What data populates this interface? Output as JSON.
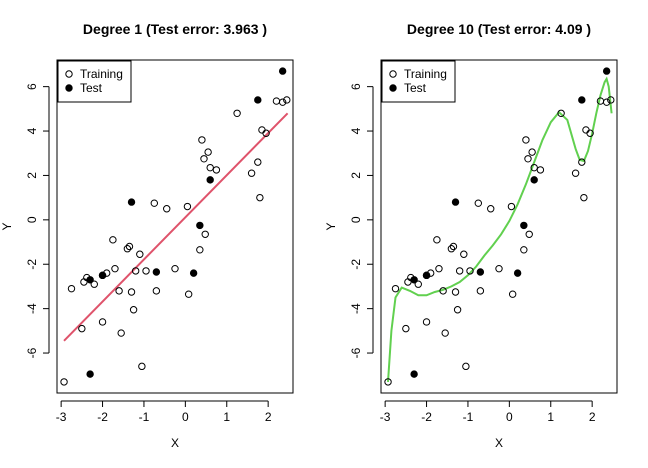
{
  "chart_data": [
    {
      "type": "scatter",
      "title": "Degree 1 (Test error: 3.963 )",
      "xlabel": "X",
      "ylabel": "Y",
      "xlim": [
        -3.1,
        2.6
      ],
      "ylim": [
        -7.8,
        7.2
      ],
      "xticks": [
        -3,
        -2,
        -1,
        0,
        1,
        2
      ],
      "yticks": [
        -6,
        -4,
        -2,
        0,
        2,
        4,
        6
      ],
      "legend": {
        "position": "top-left",
        "entries": [
          "Training",
          "Test"
        ]
      },
      "fit_color": "#DF536B",
      "fit_line": {
        "x": [
          -2.93,
          2.47
        ],
        "y": [
          -5.45,
          4.8
        ]
      },
      "series": [
        {
          "name": "Training",
          "marker": "open-circle",
          "x": [
            -2.93,
            -2.75,
            -2.5,
            -2.45,
            -2.38,
            -2.2,
            -2.0,
            -2.0,
            -1.9,
            -1.75,
            -1.7,
            -1.6,
            -1.55,
            -1.4,
            -1.35,
            -1.3,
            -1.25,
            -1.2,
            -1.1,
            -1.05,
            -0.95,
            -0.75,
            -0.7,
            -0.45,
            -0.25,
            0.05,
            0.08,
            0.35,
            0.4,
            0.45,
            0.48,
            0.55,
            0.6,
            0.75,
            1.25,
            1.6,
            1.75,
            1.8,
            1.85,
            1.95,
            2.2,
            2.35,
            2.45
          ],
          "y": [
            -7.3,
            -3.1,
            -4.9,
            -2.8,
            -2.6,
            -2.9,
            -4.6,
            -2.5,
            -2.4,
            -0.9,
            -2.2,
            -3.2,
            -5.1,
            -1.3,
            -1.2,
            -3.25,
            -4.05,
            -2.3,
            -1.55,
            -6.6,
            -2.3,
            0.75,
            -3.2,
            0.5,
            -2.2,
            0.6,
            -3.35,
            -1.35,
            3.6,
            2.75,
            -0.65,
            3.05,
            2.35,
            2.25,
            4.8,
            2.1,
            2.6,
            1.0,
            4.05,
            3.9,
            5.35,
            5.3,
            5.4
          ]
        },
        {
          "name": "Test",
          "marker": "filled-circle",
          "x": [
            -2.3,
            -2.3,
            -2.0,
            -1.3,
            -0.7,
            0.2,
            0.35,
            0.6,
            1.75,
            2.35
          ],
          "y": [
            -6.95,
            -2.7,
            -2.5,
            0.8,
            -2.35,
            -2.4,
            -0.25,
            1.8,
            5.4,
            6.7
          ]
        }
      ]
    },
    {
      "type": "scatter",
      "title": "Degree 10 (Test error: 4.09 )",
      "xlabel": "X",
      "ylabel": "Y",
      "xlim": [
        -3.1,
        2.6
      ],
      "ylim": [
        -7.8,
        7.2
      ],
      "xticks": [
        -3,
        -2,
        -1,
        0,
        1,
        2
      ],
      "yticks": [
        -6,
        -4,
        -2,
        0,
        2,
        4,
        6
      ],
      "legend": {
        "position": "top-left",
        "entries": [
          "Training",
          "Test"
        ]
      },
      "fit_color": "#61D04F",
      "fit_line": {
        "x": [
          -2.93,
          -2.85,
          -2.75,
          -2.6,
          -2.4,
          -2.2,
          -2.0,
          -1.8,
          -1.6,
          -1.4,
          -1.2,
          -1.0,
          -0.8,
          -0.6,
          -0.4,
          -0.2,
          0.0,
          0.2,
          0.4,
          0.6,
          0.8,
          1.0,
          1.2,
          1.4,
          1.6,
          1.7,
          1.8,
          1.9,
          2.0,
          2.1,
          2.2,
          2.3,
          2.35,
          2.4,
          2.47
        ],
        "y": [
          -7.3,
          -5.0,
          -3.5,
          -3.05,
          -3.2,
          -3.4,
          -3.4,
          -3.25,
          -3.15,
          -3.0,
          -2.8,
          -2.5,
          -2.1,
          -1.6,
          -1.15,
          -0.65,
          -0.05,
          0.7,
          1.6,
          2.6,
          3.6,
          4.4,
          4.85,
          4.5,
          3.2,
          2.7,
          2.65,
          3.1,
          3.9,
          4.8,
          5.6,
          6.2,
          6.35,
          6.0,
          4.8
        ]
      },
      "series": [
        {
          "name": "Training",
          "marker": "open-circle",
          "x": [
            -2.93,
            -2.75,
            -2.5,
            -2.45,
            -2.38,
            -2.2,
            -2.0,
            -2.0,
            -1.9,
            -1.75,
            -1.7,
            -1.6,
            -1.55,
            -1.4,
            -1.35,
            -1.3,
            -1.25,
            -1.2,
            -1.1,
            -1.05,
            -0.95,
            -0.75,
            -0.7,
            -0.45,
            -0.25,
            0.05,
            0.08,
            0.35,
            0.4,
            0.45,
            0.48,
            0.55,
            0.6,
            0.75,
            1.25,
            1.6,
            1.75,
            1.8,
            1.85,
            1.95,
            2.2,
            2.35,
            2.45
          ],
          "y": [
            -7.3,
            -3.1,
            -4.9,
            -2.8,
            -2.6,
            -2.9,
            -4.6,
            -2.5,
            -2.4,
            -0.9,
            -2.2,
            -3.2,
            -5.1,
            -1.3,
            -1.2,
            -3.25,
            -4.05,
            -2.3,
            -1.55,
            -6.6,
            -2.3,
            0.75,
            -3.2,
            0.5,
            -2.2,
            0.6,
            -3.35,
            -1.35,
            3.6,
            2.75,
            -0.65,
            3.05,
            2.35,
            2.25,
            4.8,
            2.1,
            2.6,
            1.0,
            4.05,
            3.9,
            5.35,
            5.3,
            5.4
          ]
        },
        {
          "name": "Test",
          "marker": "filled-circle",
          "x": [
            -2.3,
            -2.3,
            -2.0,
            -1.3,
            -0.7,
            0.2,
            0.35,
            0.6,
            1.75,
            2.35
          ],
          "y": [
            -6.95,
            -2.7,
            -2.5,
            0.8,
            -2.35,
            -2.4,
            -0.25,
            1.8,
            5.4,
            6.7
          ]
        }
      ]
    }
  ]
}
